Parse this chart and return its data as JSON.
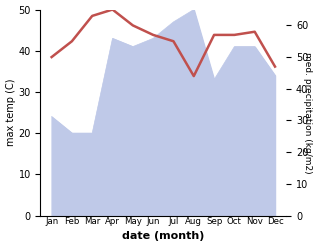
{
  "months": [
    "Jan",
    "Feb",
    "Mar",
    "Apr",
    "May",
    "Jun",
    "Jul",
    "Aug",
    "Sep",
    "Oct",
    "Nov",
    "Dec"
  ],
  "temperature": [
    50,
    55,
    63,
    65,
    60,
    57,
    55,
    44,
    57,
    57,
    58,
    47
  ],
  "precipitation": [
    24,
    20,
    20,
    43,
    41,
    43,
    47,
    50,
    33,
    41,
    41,
    34
  ],
  "temp_color": "#c0504d",
  "precip_fill_color": "#bfc9e8",
  "ylabel_left": "max temp (C)",
  "ylabel_right": "med. precipitation (kg/m2)",
  "xlabel": "date (month)",
  "ylim_left": [
    0,
    50
  ],
  "ylim_right": [
    0,
    65
  ],
  "yticks_left": [
    0,
    10,
    20,
    30,
    40,
    50
  ],
  "yticks_right": [
    0,
    10,
    20,
    30,
    40,
    50,
    60
  ],
  "bg_color": "#ffffff"
}
